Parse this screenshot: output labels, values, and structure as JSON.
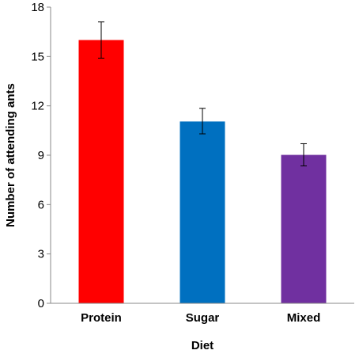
{
  "chart_data": {
    "type": "bar",
    "title": "",
    "xlabel": "Diet",
    "ylabel": "Number of attending ants",
    "ylim": [
      0,
      18
    ],
    "yticks": [
      "0",
      "3",
      "6",
      "9",
      "12",
      "15",
      "18"
    ],
    "grid": false,
    "legend": "none",
    "categories": [
      "Protein",
      "Sugar",
      "Mixed"
    ],
    "values": [
      16.0,
      11.05,
      9.02
    ],
    "error_low": [
      14.9,
      10.3,
      8.35
    ],
    "error_high": [
      17.1,
      11.85,
      9.7
    ],
    "colors": [
      "#ff0000",
      "#0070c0",
      "#7030a0"
    ]
  }
}
